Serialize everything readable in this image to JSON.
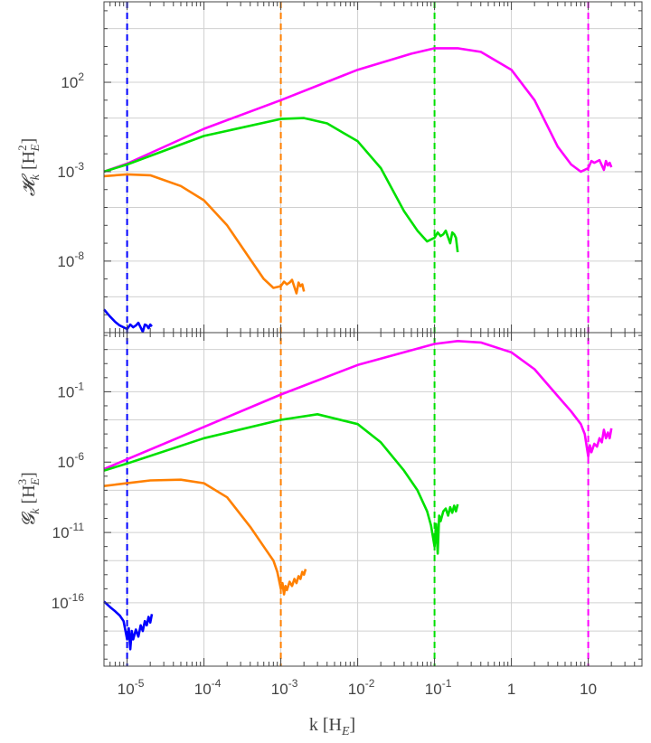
{
  "chart_data": [
    {
      "type": "line",
      "panel": "top",
      "ylabel": "𝓗k [H²E]",
      "ylabel_parts": {
        "main": "𝓗",
        "sub": "k",
        "unit_open": " [H",
        "unit_sup": "2",
        "unit_sub": "E",
        "unit_close": "]"
      },
      "yscale": "log",
      "ylim_exp": [
        -12,
        6.5
      ],
      "yticks": [
        {
          "exp": 2,
          "label_base": "10",
          "label_sup": "2"
        },
        {
          "exp": -3,
          "label_base": "10",
          "label_sup": "-3"
        },
        {
          "exp": -8,
          "label_base": "10",
          "label_sup": "-8"
        }
      ],
      "xscale": "log",
      "grid": true,
      "series": [
        {
          "color": "#ff00ff",
          "points": [
            [
              5e-06,
              -3.0
            ],
            [
              1e-05,
              -2.55
            ],
            [
              0.0001,
              -0.6
            ],
            [
              0.001,
              1.0
            ],
            [
              0.01,
              2.7
            ],
            [
              0.05,
              3.6
            ],
            [
              0.1,
              3.9
            ],
            [
              0.2,
              3.9
            ],
            [
              0.4,
              3.7
            ],
            [
              1,
              2.7
            ],
            [
              2,
              1.0
            ],
            [
              4,
              -1.6
            ],
            [
              6,
              -2.6
            ],
            [
              8,
              -3.0
            ],
            [
              10,
              -2.8
            ],
            [
              11,
              -2.4
            ],
            [
              12,
              -2.5
            ],
            [
              14,
              -2.35
            ],
            [
              16,
              -2.9
            ],
            [
              17,
              -2.4
            ],
            [
              18,
              -2.65
            ],
            [
              19,
              -2.5
            ],
            [
              20,
              -2.75
            ]
          ]
        },
        {
          "color": "#00e000",
          "points": [
            [
              5e-06,
              -3.0
            ],
            [
              1e-05,
              -2.6
            ],
            [
              0.0001,
              -1.0
            ],
            [
              0.001,
              -0.05
            ],
            [
              0.002,
              0.0
            ],
            [
              0.004,
              -0.3
            ],
            [
              0.01,
              -1.3
            ],
            [
              0.02,
              -2.8
            ],
            [
              0.04,
              -5.2
            ],
            [
              0.06,
              -6.3
            ],
            [
              0.08,
              -6.9
            ],
            [
              0.1,
              -6.7
            ],
            [
              0.11,
              -6.4
            ],
            [
              0.12,
              -6.6
            ],
            [
              0.13,
              -6.5
            ],
            [
              0.14,
              -6.3
            ],
            [
              0.16,
              -7.0
            ],
            [
              0.17,
              -6.4
            ],
            [
              0.18,
              -6.5
            ],
            [
              0.19,
              -6.7
            ],
            [
              0.2,
              -7.5
            ]
          ]
        },
        {
          "color": "#ff8000",
          "points": [
            [
              5e-06,
              -3.25
            ],
            [
              1e-05,
              -3.15
            ],
            [
              2e-05,
              -3.2
            ],
            [
              5e-05,
              -3.8
            ],
            [
              0.0001,
              -4.6
            ],
            [
              0.0002,
              -6.0
            ],
            [
              0.0004,
              -7.9
            ],
            [
              0.0006,
              -9.0
            ],
            [
              0.0008,
              -9.5
            ],
            [
              0.001,
              -9.4
            ],
            [
              0.0011,
              -9.15
            ],
            [
              0.0012,
              -9.3
            ],
            [
              0.0013,
              -9.2
            ],
            [
              0.0014,
              -9.05
            ],
            [
              0.0016,
              -9.8
            ],
            [
              0.0017,
              -9.2
            ],
            [
              0.0018,
              -9.4
            ],
            [
              0.0019,
              -9.3
            ],
            [
              0.002,
              -9.7
            ]
          ]
        },
        {
          "color": "#0000ff",
          "points": [
            [
              5e-06,
              -10.7
            ],
            [
              6e-06,
              -11.1
            ],
            [
              7e-06,
              -11.4
            ],
            [
              8e-06,
              -11.6
            ],
            [
              1e-05,
              -11.8
            ],
            [
              1.1e-05,
              -11.55
            ],
            [
              1.2e-05,
              -11.7
            ],
            [
              1.3e-05,
              -11.6
            ],
            [
              1.4e-05,
              -11.45
            ],
            [
              1.6e-05,
              -11.95
            ],
            [
              1.7e-05,
              -11.55
            ],
            [
              1.8e-05,
              -11.6
            ],
            [
              1.9e-05,
              -11.75
            ],
            [
              2e-05,
              -11.55
            ],
            [
              2.1e-05,
              -11.65
            ]
          ]
        }
      ]
    },
    {
      "type": "line",
      "panel": "bottom",
      "ylabel": "𝓖k [H³E]",
      "ylabel_parts": {
        "main": "𝓖",
        "sub": "k",
        "unit_open": " [H",
        "unit_sup": "3",
        "unit_sub": "E",
        "unit_close": "]"
      },
      "yscale": "log",
      "ylim_exp": [
        -20.5,
        3.2
      ],
      "yticks": [
        {
          "exp": -1,
          "label_base": "10",
          "label_sup": "-1"
        },
        {
          "exp": -6,
          "label_base": "10",
          "label_sup": "-6"
        },
        {
          "exp": -11,
          "label_base": "10",
          "label_sup": "-11"
        },
        {
          "exp": -16,
          "label_base": "10",
          "label_sup": "-16"
        }
      ],
      "xscale": "log",
      "grid": true,
      "xlabel": "k [HE]",
      "xlabel_parts": {
        "main": "k [H",
        "sub": "E",
        "close": "]"
      },
      "xticks": [
        {
          "value": 1e-05,
          "label_base": "10",
          "label_sup": "-5"
        },
        {
          "value": 0.0001,
          "label_base": "10",
          "label_sup": "-4"
        },
        {
          "value": 0.001,
          "label_base": "10",
          "label_sup": "-3"
        },
        {
          "value": 0.01,
          "label_base": "10",
          "label_sup": "-2"
        },
        {
          "value": 0.1,
          "label_base": "10",
          "label_sup": "-1"
        },
        {
          "value": 1,
          "label_base": "1",
          "label_sup": ""
        },
        {
          "value": 10,
          "label_base": "10",
          "label_sup": ""
        }
      ],
      "series": [
        {
          "color": "#ff00ff",
          "points": [
            [
              5e-06,
              -6.5
            ],
            [
              1e-05,
              -5.8
            ],
            [
              0.0001,
              -3.5
            ],
            [
              0.001,
              -1.2
            ],
            [
              0.01,
              0.9
            ],
            [
              0.1,
              2.4
            ],
            [
              0.2,
              2.6
            ],
            [
              0.4,
              2.5
            ],
            [
              1,
              1.8
            ],
            [
              2,
              0.6
            ],
            [
              4,
              -1.3
            ],
            [
              6,
              -2.4
            ],
            [
              8,
              -3.3
            ],
            [
              9,
              -4.0
            ],
            [
              10,
              -5.6
            ],
            [
              10.5,
              -4.8
            ],
            [
              11,
              -5.3
            ],
            [
              12,
              -4.7
            ],
            [
              13,
              -4.9
            ],
            [
              14,
              -4.3
            ],
            [
              15,
              -4.6
            ],
            [
              16,
              -3.7
            ],
            [
              17,
              -4.3
            ],
            [
              18,
              -3.9
            ],
            [
              19,
              -4.3
            ],
            [
              20,
              -3.6
            ]
          ]
        },
        {
          "color": "#00e000",
          "points": [
            [
              5e-06,
              -6.6
            ],
            [
              1e-05,
              -6.1
            ],
            [
              0.0001,
              -4.3
            ],
            [
              0.001,
              -3.0
            ],
            [
              0.003,
              -2.6
            ],
            [
              0.01,
              -3.3
            ],
            [
              0.02,
              -4.6
            ],
            [
              0.04,
              -6.6
            ],
            [
              0.06,
              -8.0
            ],
            [
              0.08,
              -9.5
            ],
            [
              0.09,
              -10.5
            ],
            [
              0.1,
              -12.0
            ],
            [
              0.105,
              -10.4
            ],
            [
              0.11,
              -12.5
            ],
            [
              0.115,
              -9.8
            ],
            [
              0.12,
              -10.2
            ],
            [
              0.13,
              -9.5
            ],
            [
              0.14,
              -9.3
            ],
            [
              0.15,
              -9.8
            ],
            [
              0.16,
              -9.2
            ],
            [
              0.17,
              -9.6
            ],
            [
              0.18,
              -9.1
            ],
            [
              0.19,
              -9.5
            ],
            [
              0.2,
              -9.0
            ]
          ]
        },
        {
          "color": "#ff8000",
          "points": [
            [
              5e-06,
              -7.7
            ],
            [
              1e-05,
              -7.5
            ],
            [
              2e-05,
              -7.3
            ],
            [
              5e-05,
              -7.25
            ],
            [
              0.0001,
              -7.5
            ],
            [
              0.0002,
              -8.5
            ],
            [
              0.0004,
              -10.6
            ],
            [
              0.0006,
              -12.0
            ],
            [
              0.0008,
              -13.0
            ],
            [
              0.0009,
              -13.8
            ],
            [
              0.001,
              -15.0
            ],
            [
              0.00105,
              -14.6
            ],
            [
              0.0011,
              -15.4
            ],
            [
              0.00115,
              -14.8
            ],
            [
              0.0012,
              -15.1
            ],
            [
              0.0013,
              -14.5
            ],
            [
              0.0014,
              -14.8
            ],
            [
              0.0015,
              -14.3
            ],
            [
              0.0016,
              -14.6
            ],
            [
              0.0017,
              -14.1
            ],
            [
              0.0018,
              -14.3
            ],
            [
              0.0019,
              -13.8
            ],
            [
              0.002,
              -14.0
            ],
            [
              0.0021,
              -13.6
            ]
          ]
        },
        {
          "color": "#0000ff",
          "points": [
            [
              5e-06,
              -15.9
            ],
            [
              6e-06,
              -16.3
            ],
            [
              7e-06,
              -16.6
            ],
            [
              8e-06,
              -16.9
            ],
            [
              9e-06,
              -17.3
            ],
            [
              1e-05,
              -18.6
            ],
            [
              1.05e-05,
              -17.8
            ],
            [
              1.1e-05,
              -19.3
            ],
            [
              1.15e-05,
              -18.0
            ],
            [
              1.2e-05,
              -18.6
            ],
            [
              1.3e-05,
              -17.9
            ],
            [
              1.4e-05,
              -18.4
            ],
            [
              1.5e-05,
              -17.6
            ],
            [
              1.6e-05,
              -18.0
            ],
            [
              1.7e-05,
              -17.3
            ],
            [
              1.8e-05,
              -17.6
            ],
            [
              1.9e-05,
              -17.0
            ],
            [
              2e-05,
              -17.4
            ],
            [
              2.1e-05,
              -16.8
            ]
          ]
        }
      ]
    }
  ],
  "reference_lines": [
    {
      "x": 1e-05,
      "color": "#0000ff",
      "style": "dashed"
    },
    {
      "x": 0.001,
      "color": "#ff8000",
      "style": "dashed"
    },
    {
      "x": 0.1,
      "color": "#00e000",
      "style": "dashed"
    },
    {
      "x": 10,
      "color": "#ff00ff",
      "style": "dashed"
    }
  ],
  "x_range": [
    5e-06,
    50
  ]
}
